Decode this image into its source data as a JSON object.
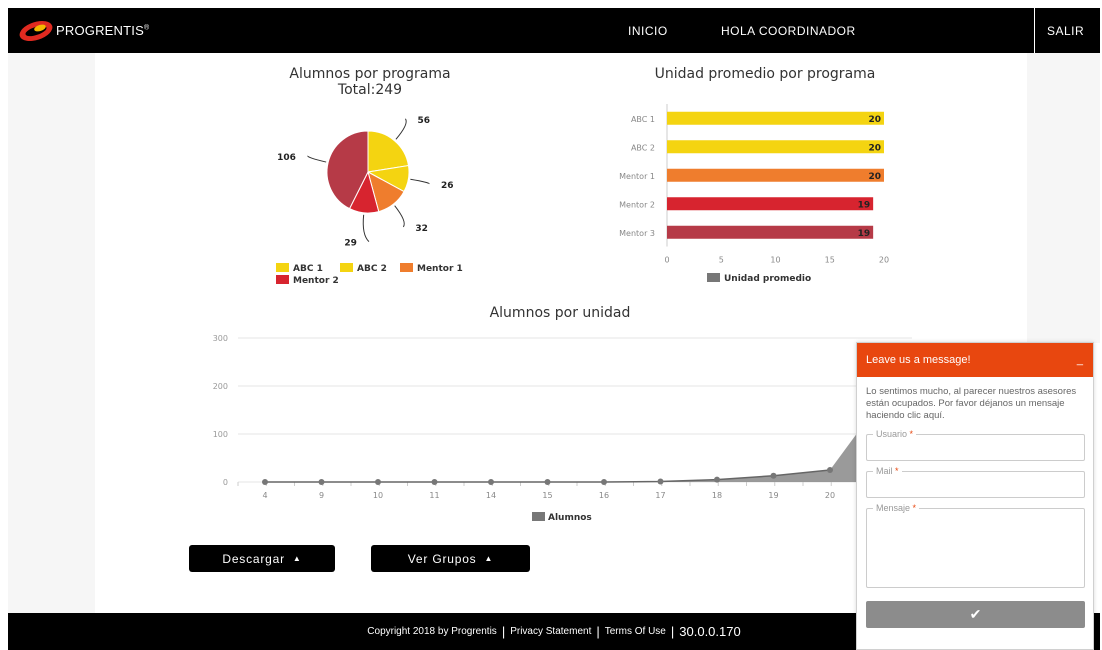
{
  "header": {
    "brand": "PROGRENTIS",
    "brand_mark": "®",
    "nav_inicio": "INICIO",
    "nav_hola": "HOLA COORDINADOR",
    "nav_salir": "SALIR"
  },
  "colors": {
    "abc1": "#f4d411",
    "abc2": "#f4d411",
    "mentor1": "#ef7d2d",
    "mentor2": "#d7242f",
    "mentor3": "#b63a47",
    "area": "#888888",
    "chat_header": "#e8470f"
  },
  "pie": {
    "title": "Alumnos por programa",
    "subtitle": "Total:249",
    "legend": [
      "ABC 1",
      "ABC 2",
      "Mentor 1",
      "Mentor 2"
    ],
    "chart_data": {
      "type": "pie",
      "categories": [
        "ABC 1",
        "ABC 2",
        "Mentor 1",
        "Mentor 2",
        "Mentor 3"
      ],
      "values": [
        56,
        26,
        32,
        29,
        106
      ],
      "title": "Alumnos por programa",
      "subtitle": "Total:249"
    }
  },
  "bar": {
    "title": "Unidad promedio por programa",
    "legend": "Unidad promedio",
    "chart_data": {
      "type": "bar",
      "orientation": "horizontal",
      "categories": [
        "ABC 1",
        "ABC 2",
        "Mentor 1",
        "Mentor 2",
        "Mentor 3"
      ],
      "values": [
        20,
        20,
        20,
        19,
        19
      ],
      "title": "Unidad promedio por programa",
      "xlim": [
        0,
        20
      ],
      "xticks": [
        0,
        5,
        10,
        15,
        20
      ],
      "series": [
        {
          "name": "Unidad promedio",
          "values": [
            20,
            20,
            20,
            19,
            19
          ]
        }
      ]
    }
  },
  "line": {
    "title": "Alumnos por unidad",
    "legend": "Alumnos",
    "chart_data": {
      "type": "area",
      "categories": [
        "4",
        "9",
        "10",
        "11",
        "14",
        "15",
        "16",
        "17",
        "18",
        "19",
        "20"
      ],
      "values": [
        0,
        0,
        0,
        0,
        0,
        0,
        0,
        1,
        5,
        13,
        25
      ],
      "title": "Alumnos por unidad",
      "ylim": [
        0,
        300
      ],
      "yticks": [
        0,
        100,
        200,
        300
      ],
      "series": [
        {
          "name": "Alumnos",
          "values": [
            0,
            0,
            0,
            0,
            0,
            0,
            0,
            1,
            5,
            13,
            25
          ]
        }
      ]
    }
  },
  "buttons": {
    "descargar": "Descargar",
    "ver_grupos": "Ver Grupos"
  },
  "footer": {
    "copyright": "Copyright 2018 by Progrentis",
    "privacy": "Privacy Statement",
    "terms": "Terms Of Use",
    "version": "30.0.0.170"
  },
  "chat": {
    "title": "Leave us a message!",
    "minimize": "_",
    "message": "Lo sentimos mucho, al parecer nuestros asesores están ocupados. Por favor déjanos un mensaje haciendo clic aquí.",
    "usuario_label": "Usuario",
    "mail_label": "Mail",
    "mensaje_label": "Mensaje",
    "required_mark": "*",
    "send_icon": "✔"
  }
}
